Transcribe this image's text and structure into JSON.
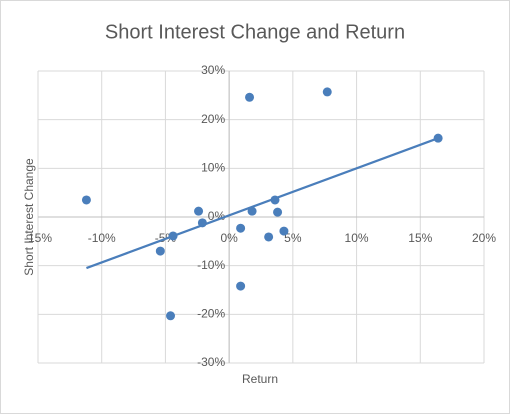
{
  "chart_data": {
    "type": "scatter",
    "title": "Short Interest Change and Return",
    "x_label": "Return",
    "y_label": "Short Interest Change",
    "x": [
      -11.2,
      -5.4,
      -4.6,
      -4.4,
      -2.4,
      -2.1,
      0.9,
      0.9,
      1.6,
      1.8,
      3.1,
      3.6,
      3.8,
      4.3,
      7.7,
      16.4
    ],
    "values": [
      3.5,
      -7.0,
      -20.3,
      -3.9,
      1.2,
      -1.2,
      -2.3,
      -14.2,
      24.6,
      1.2,
      -4.1,
      3.5,
      1.0,
      -2.9,
      25.7,
      16.2
    ],
    "color": "#4a7ebb",
    "trendline": {
      "x": [
        -11.2,
        16.4
      ],
      "y": [
        -10.5,
        16.2
      ],
      "color": "#4a7ebb"
    },
    "xlim": [
      -15,
      20
    ],
    "ylim": [
      -30,
      30
    ],
    "xticks": [
      {
        "value": -15,
        "label": "-15%"
      },
      {
        "value": -10,
        "label": "-10%"
      },
      {
        "value": -5,
        "label": "-5%"
      },
      {
        "value": 0,
        "label": "0%"
      },
      {
        "value": 5,
        "label": "5%"
      },
      {
        "value": 10,
        "label": "10%"
      },
      {
        "value": 15,
        "label": "15%"
      },
      {
        "value": 20,
        "label": "20%"
      }
    ],
    "yticks": [
      {
        "value": -30,
        "label": "-30%"
      },
      {
        "value": -20,
        "label": "-20%"
      },
      {
        "value": -10,
        "label": "-10%"
      },
      {
        "value": 0,
        "label": "0%"
      },
      {
        "value": 10,
        "label": "10%"
      },
      {
        "value": 20,
        "label": "20%"
      },
      {
        "value": 30,
        "label": "30%"
      }
    ],
    "grid": true
  }
}
